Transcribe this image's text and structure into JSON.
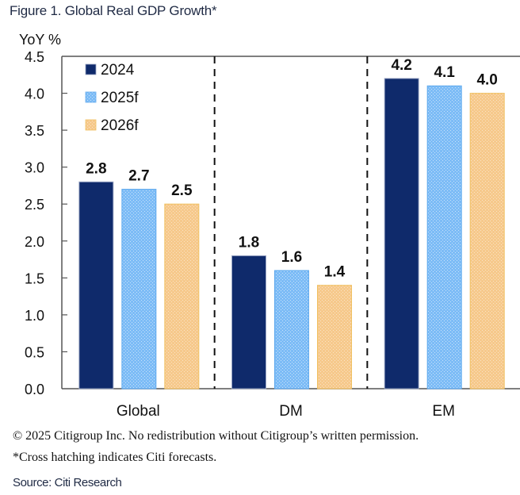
{
  "figure": {
    "title": "Figure 1. Global Real GDP Growth*",
    "copyright": "© 2025 Citigroup Inc. No redistribution without Citigroup’s written permission.",
    "footnote": "*Cross hatching indicates Citi forecasts.",
    "source": "Source: Citi Research"
  },
  "chart_data": {
    "type": "bar",
    "title": "Figure 1. Global Real GDP Growth*",
    "xlabel": "",
    "ylabel": "YoY %",
    "ylim": [
      0,
      4.5
    ],
    "yticks": [
      "0.0",
      "0.5",
      "1.0",
      "1.5",
      "2.0",
      "2.5",
      "3.0",
      "3.5",
      "4.0",
      "4.5"
    ],
    "categories": [
      "Global",
      "DM",
      "EM"
    ],
    "series": [
      {
        "name": "2024",
        "values": [
          2.8,
          1.8,
          4.2
        ],
        "labels": [
          "2.8",
          "1.8",
          "4.2"
        ],
        "color": "#0f2a6b",
        "hatched": false
      },
      {
        "name": "2025f",
        "values": [
          2.7,
          1.6,
          4.1
        ],
        "labels": [
          "2.7",
          "1.6",
          "4.1"
        ],
        "color": "#7dbcf6",
        "hatched": true
      },
      {
        "name": "2026f",
        "values": [
          2.5,
          1.4,
          4.0
        ],
        "labels": [
          "2.5",
          "1.4",
          "4.0"
        ],
        "color": "#f6c98c",
        "hatched": true
      }
    ],
    "legend": {
      "position": "top-left"
    },
    "grid": false,
    "group_separators": "dashed"
  }
}
